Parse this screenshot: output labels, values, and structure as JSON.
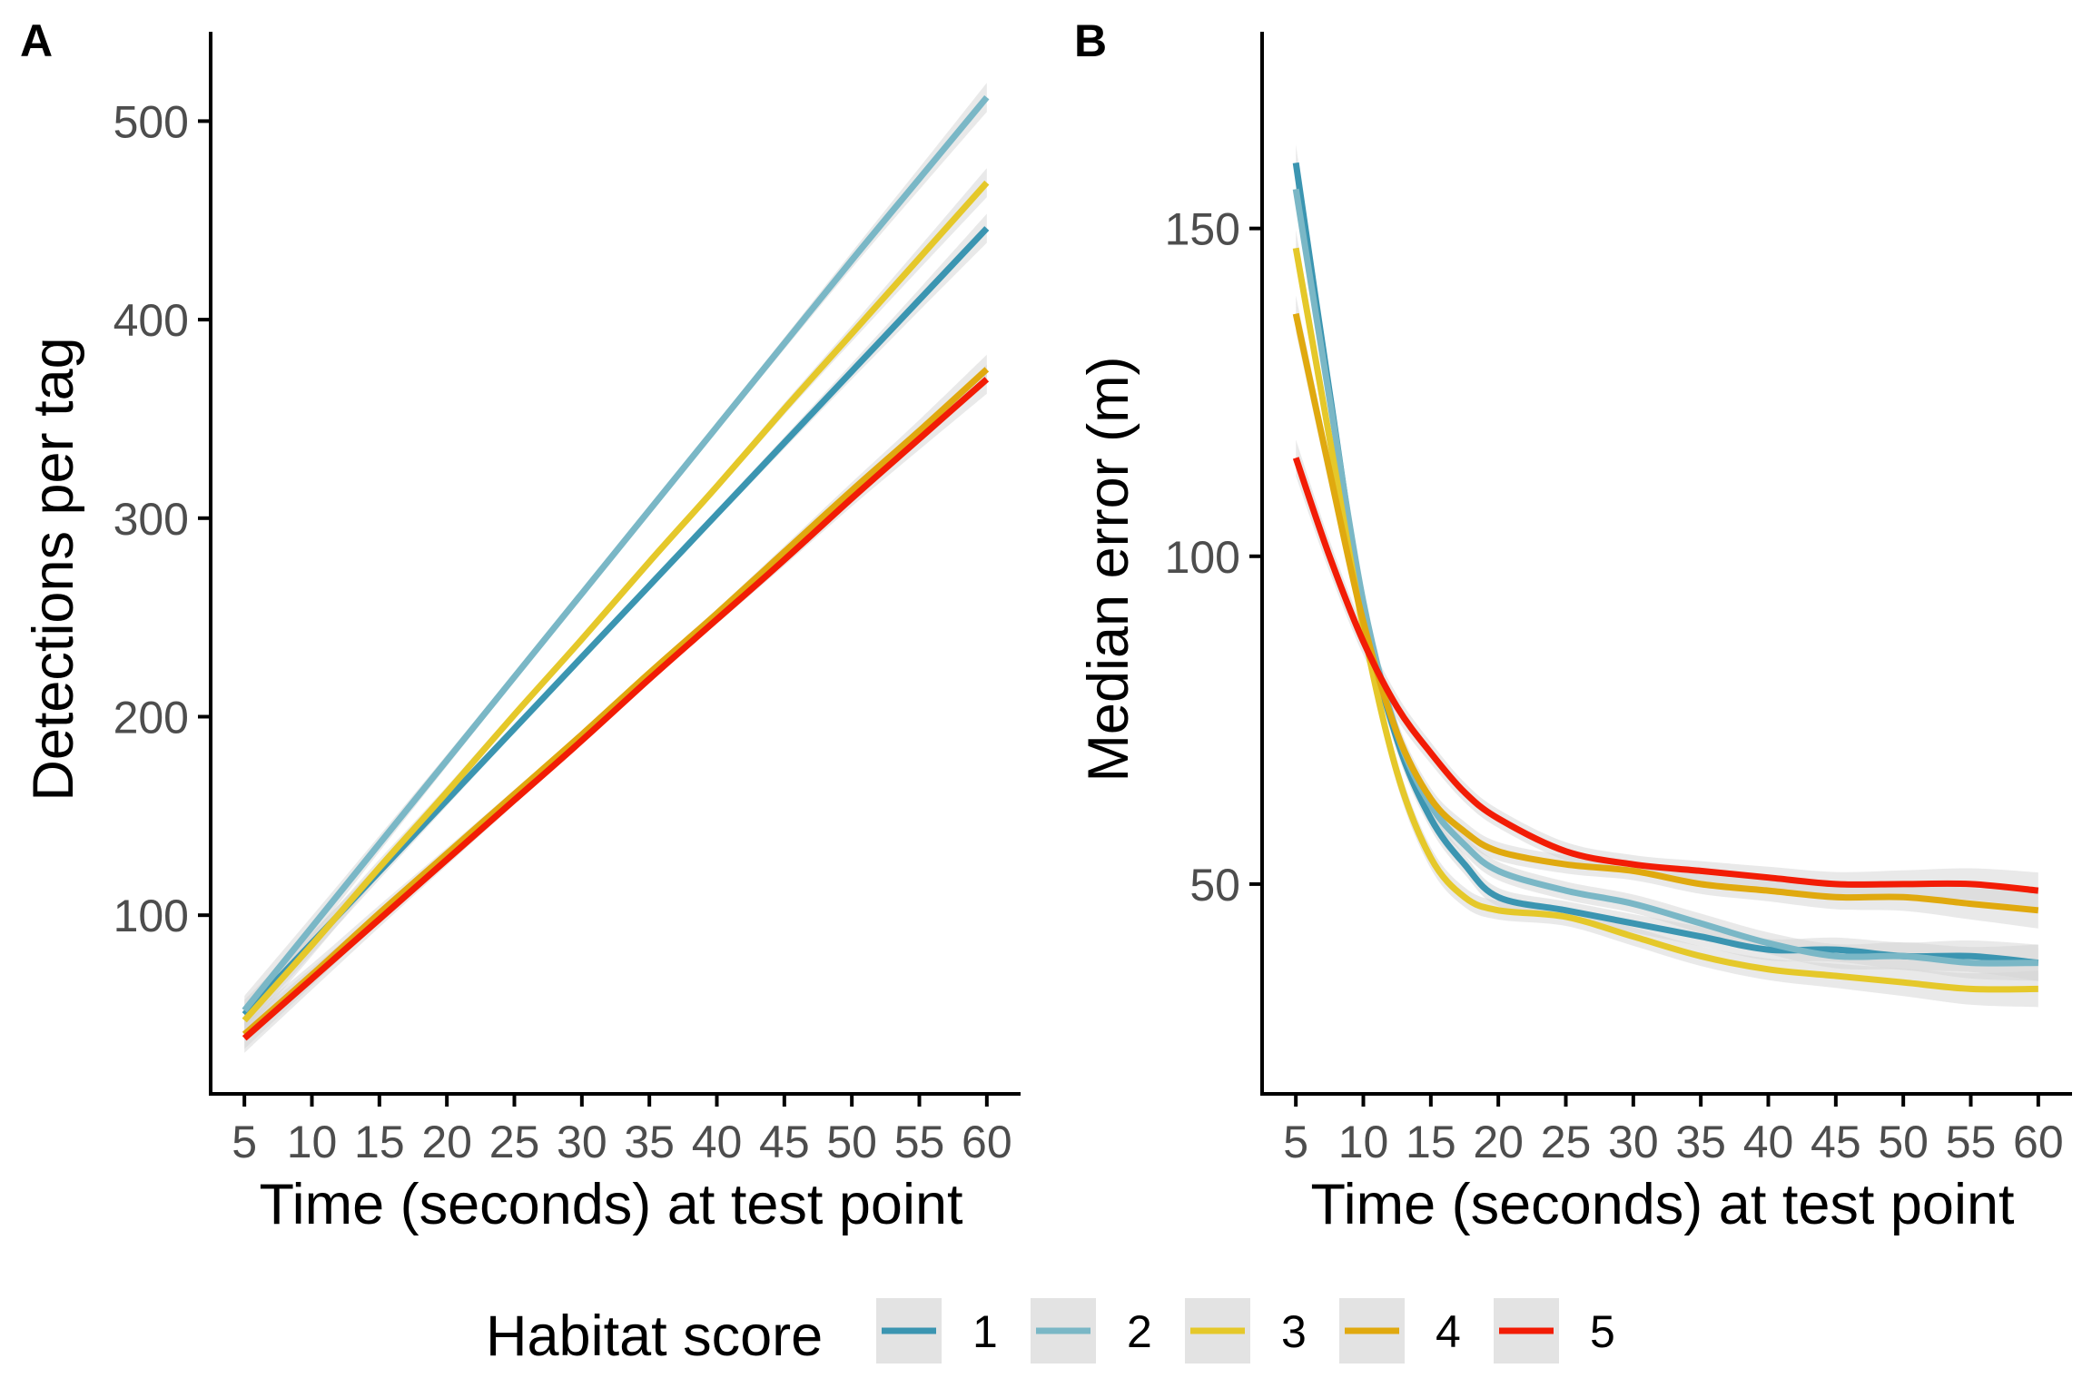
{
  "chart_data": [
    {
      "panel": "A",
      "type": "line",
      "xlabel": "Time (seconds) at test point",
      "ylabel": "Detections per tag",
      "x": [
        5,
        10,
        15,
        20,
        25,
        30,
        35,
        40,
        45,
        50,
        55,
        60
      ],
      "x_ticks": [
        "5",
        "10",
        "15",
        "20",
        "25",
        "30",
        "35",
        "40",
        "45",
        "50",
        "55",
        "60"
      ],
      "y_ticks": [
        "100",
        "200",
        "300",
        "400",
        "500"
      ],
      "y_tick_values": [
        100,
        200,
        300,
        400,
        500
      ],
      "xlim": [
        2.5,
        62.5
      ],
      "ylim": [
        10,
        545
      ],
      "confidence_band": true,
      "series": [
        {
          "name": "1",
          "y": [
            50,
            86,
            122,
            158,
            194,
            230,
            266,
            302,
            338,
            374,
            410,
            446
          ]
        },
        {
          "name": "2",
          "y": [
            52,
            94,
            136,
            178,
            220,
            262,
            304,
            346,
            388,
            430,
            471,
            512
          ]
        },
        {
          "name": "3",
          "y": [
            47,
            85,
            124,
            162,
            201,
            239,
            278,
            316,
            355,
            393,
            431,
            469
          ]
        },
        {
          "name": "4",
          "y": [
            40,
            70,
            101,
            131,
            161,
            191,
            222,
            252,
            283,
            314,
            344,
            375
          ]
        },
        {
          "name": "5",
          "y": [
            38,
            68,
            98,
            128,
            158,
            188,
            219,
            249,
            279,
            310,
            340,
            370
          ]
        }
      ]
    },
    {
      "panel": "B",
      "type": "line",
      "xlabel": "Time (seconds) at test point",
      "ylabel": "Median error (m)",
      "x": [
        5,
        7.5,
        10,
        12.5,
        15,
        17.5,
        20,
        25,
        30,
        35,
        40,
        45,
        50,
        55,
        60
      ],
      "x_ticks": [
        "5",
        "10",
        "15",
        "20",
        "25",
        "30",
        "35",
        "40",
        "45",
        "50",
        "55",
        "60"
      ],
      "x_tick_values": [
        5,
        10,
        15,
        20,
        25,
        30,
        35,
        40,
        45,
        50,
        55,
        60
      ],
      "y_ticks": [
        "50",
        "100",
        "150"
      ],
      "y_tick_values": [
        50,
        100,
        150
      ],
      "xlim": [
        2.5,
        62.5
      ],
      "ylim": [
        18,
        180
      ],
      "confidence_band": true,
      "series": [
        {
          "name": "1",
          "y": [
            160,
            125,
            92,
            72,
            60,
            53,
            48,
            46,
            44,
            42,
            40,
            40,
            39,
            39,
            38
          ]
        },
        {
          "name": "2",
          "y": [
            156,
            124,
            93,
            73,
            62,
            56,
            52,
            49,
            47,
            44,
            41,
            39,
            39,
            38,
            38
          ]
        },
        {
          "name": "3",
          "y": [
            147,
            118,
            89,
            67,
            54,
            48,
            46,
            45,
            42,
            39,
            37,
            36,
            35,
            34,
            34
          ]
        },
        {
          "name": "4",
          "y": [
            137,
            113,
            90,
            73,
            63,
            58,
            55,
            53,
            52,
            50,
            49,
            48,
            48,
            47,
            46
          ]
        },
        {
          "name": "5",
          "y": [
            115,
            100,
            87,
            77,
            70,
            64,
            60,
            55,
            53,
            52,
            51,
            50,
            50,
            50,
            49
          ]
        }
      ]
    }
  ],
  "legend": {
    "title": "Habitat score",
    "entries": [
      {
        "label": "1",
        "color": "#3b95b1"
      },
      {
        "label": "2",
        "color": "#7ab7c6"
      },
      {
        "label": "3",
        "color": "#e5c82a"
      },
      {
        "label": "4",
        "color": "#e0a90f"
      },
      {
        "label": "5",
        "color": "#f21c05"
      }
    ]
  },
  "colors": {
    "band": "#d4d4d4",
    "axis": "#000000",
    "tick_label": "#4d4d4d",
    "legend_key_bg": "#e3e3e3"
  }
}
